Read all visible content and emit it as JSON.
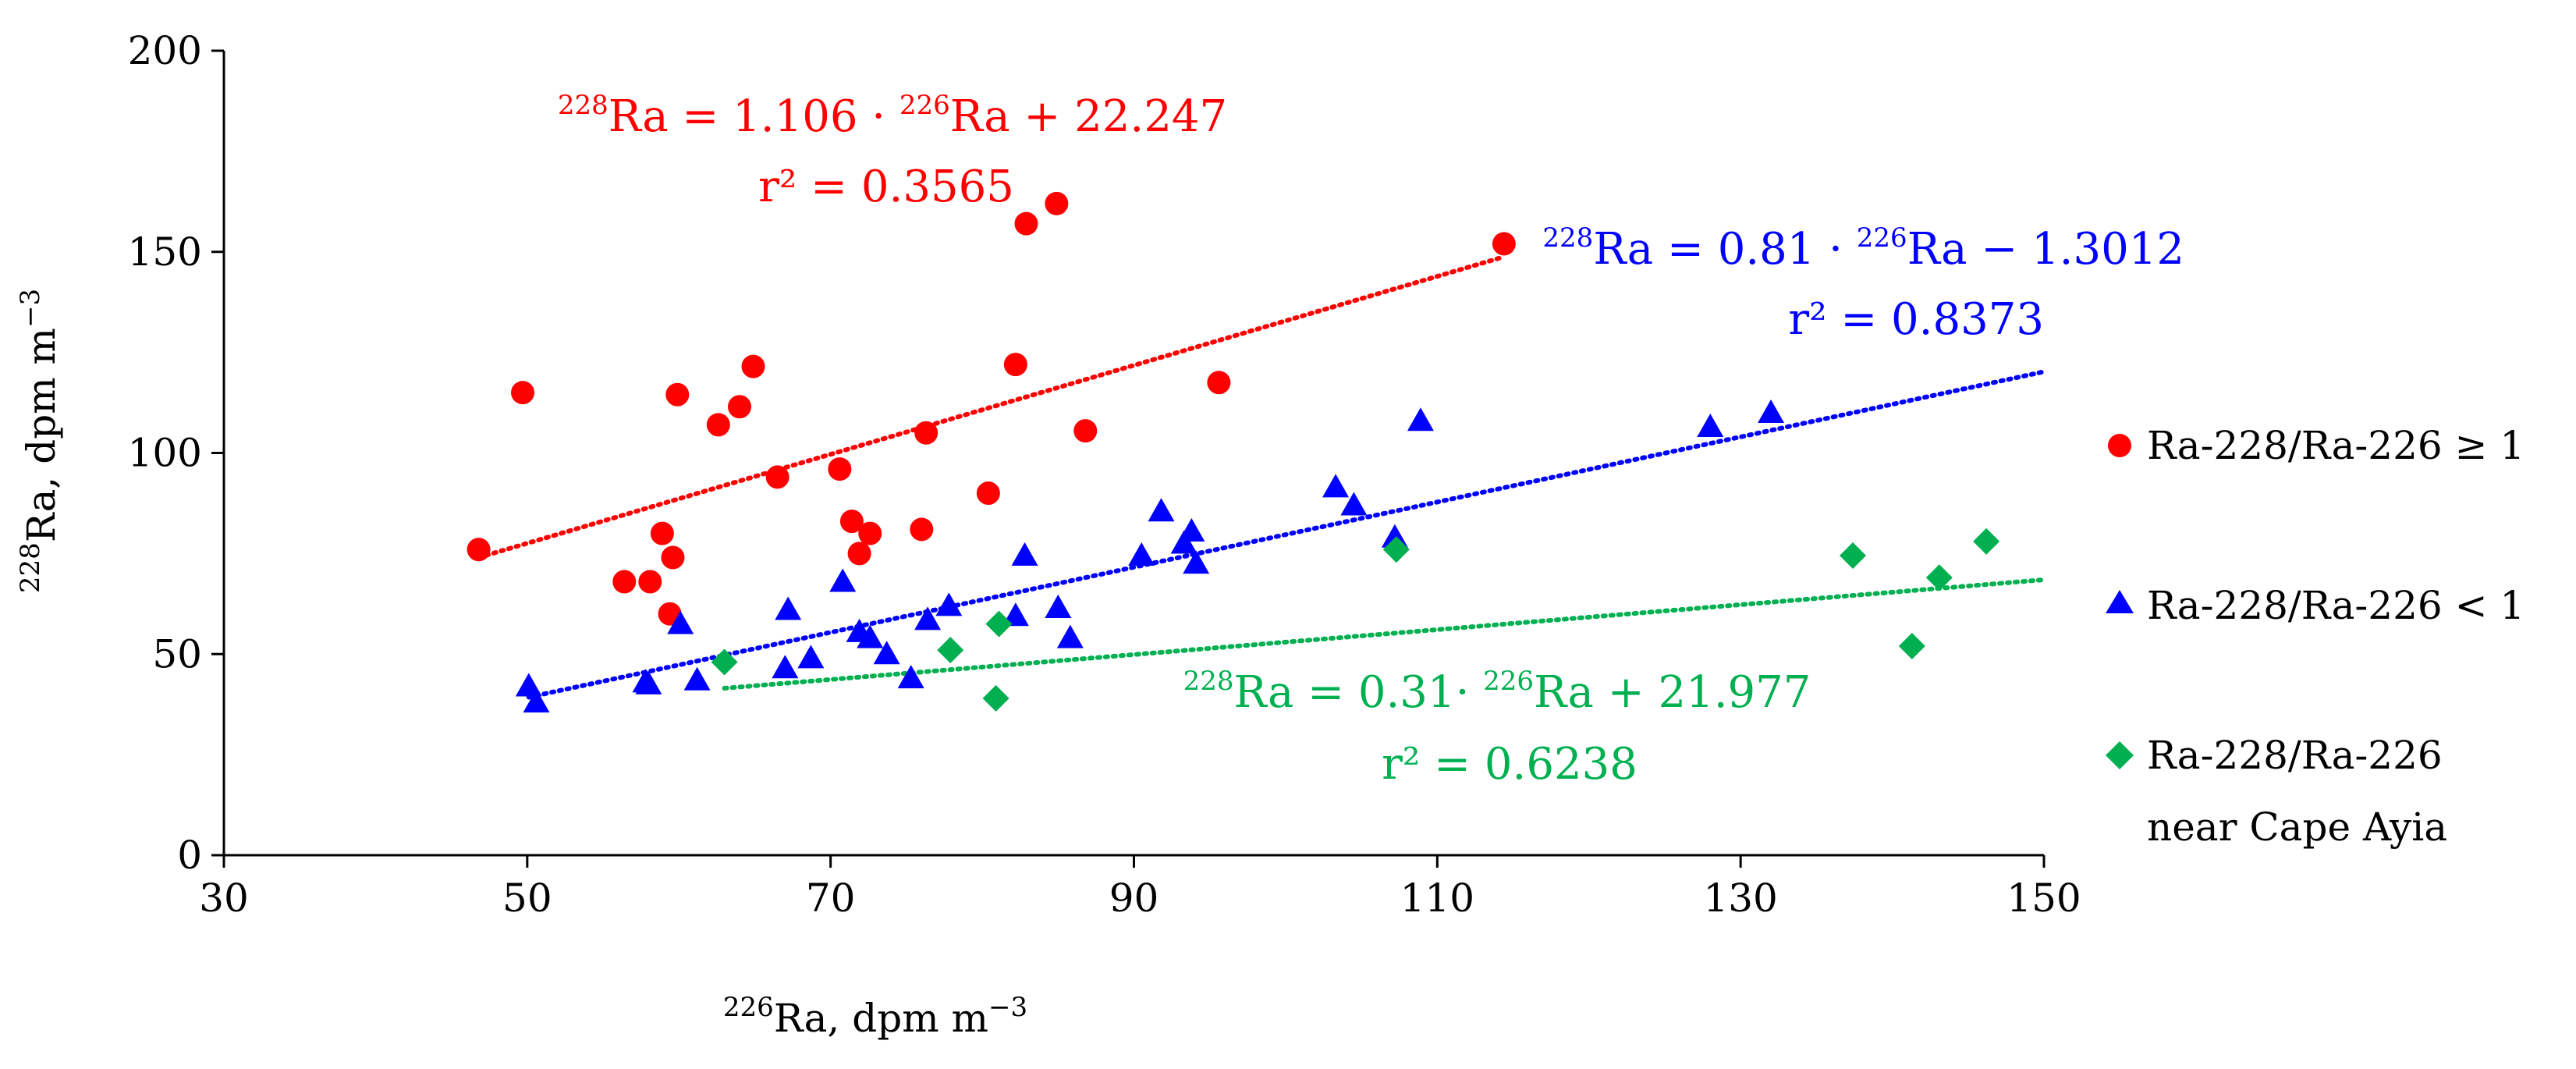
{
  "chart_data": {
    "type": "scatter",
    "title": "",
    "xlabel": {
      "sup": "226",
      "text": "Ra, dpm m",
      "unit_sup": "−3"
    },
    "ylabel": {
      "sup": "228",
      "text": "Ra, dpm m",
      "unit_sup": "−3"
    },
    "xlim": [
      30,
      150
    ],
    "ylim": [
      0,
      200
    ],
    "x_ticks": [
      30,
      50,
      70,
      90,
      110,
      130,
      150
    ],
    "y_ticks": [
      0,
      50,
      100,
      150,
      200
    ],
    "grid": false,
    "legend_position": "right",
    "colors": {
      "red": "#ff0000",
      "blue": "#0000ff",
      "green": "#00b050"
    },
    "series": [
      {
        "name": "Ra-228/Ra-226 ≥ 1",
        "name_line2": "",
        "marker": "circle",
        "color": "#ff0000",
        "points": [
          [
            46.8,
            76
          ],
          [
            49.7,
            115
          ],
          [
            56.4,
            68
          ],
          [
            58.1,
            68
          ],
          [
            58.9,
            80
          ],
          [
            59.4,
            60
          ],
          [
            59.6,
            74
          ],
          [
            59.9,
            114.5
          ],
          [
            62.6,
            107
          ],
          [
            64,
            111.5
          ],
          [
            64.9,
            121.5
          ],
          [
            66.5,
            94
          ],
          [
            70.6,
            96
          ],
          [
            71.4,
            83
          ],
          [
            71.9,
            75
          ],
          [
            72.6,
            80
          ],
          [
            76,
            81
          ],
          [
            76.3,
            105
          ],
          [
            80.4,
            90
          ],
          [
            82.2,
            122
          ],
          [
            82.9,
            157
          ],
          [
            84.9,
            162
          ],
          [
            86.8,
            105.5
          ],
          [
            95.6,
            117.5
          ],
          [
            114.4,
            152
          ]
        ],
        "trendline": {
          "slope": 1.106,
          "intercept": 22.247,
          "x_range": [
            46.8,
            114.4
          ],
          "equation": {
            "lhs_sup": "228",
            "lhs": "Ra = 1.106 · ",
            "rhs_sup": "226",
            "rhs": "Ra + 22.247"
          },
          "r2_text": "r² = 0.3565"
        }
      },
      {
        "name": "Ra-228/Ra-226 < 1",
        "name_line2": "",
        "marker": "triangle",
        "color": "#0000ff",
        "points": [
          [
            50.1,
            42
          ],
          [
            50.6,
            38
          ],
          [
            57.8,
            43
          ],
          [
            58,
            42.5
          ],
          [
            60.1,
            57.5
          ],
          [
            61.2,
            43.5
          ],
          [
            67,
            46.5
          ],
          [
            67.2,
            61
          ],
          [
            68.7,
            49
          ],
          [
            70.8,
            68
          ],
          [
            71.9,
            55.5
          ],
          [
            72.6,
            54
          ],
          [
            73.7,
            50
          ],
          [
            75.3,
            44
          ],
          [
            76.4,
            58.5
          ],
          [
            77.8,
            62
          ],
          [
            82.2,
            59.5
          ],
          [
            82.8,
            74.5
          ],
          [
            85,
            61.5
          ],
          [
            85.8,
            54
          ],
          [
            90.5,
            74.5
          ],
          [
            91.8,
            85.5
          ],
          [
            93.3,
            77.5
          ],
          [
            93.8,
            80.5
          ],
          [
            94.1,
            72.5
          ],
          [
            103.3,
            91.5
          ],
          [
            104.5,
            87
          ],
          [
            107.2,
            79
          ],
          [
            108.9,
            108
          ],
          [
            128,
            106.5
          ],
          [
            132,
            110
          ]
        ],
        "trendline": {
          "slope": 0.81,
          "intercept": -1.3012,
          "x_range": [
            50.1,
            150
          ],
          "equation": {
            "lhs_sup": "228",
            "lhs": "Ra = 0.81 · ",
            "rhs_sup": "226",
            "rhs": "Ra  − 1.3012"
          },
          "r2_text": "r² = 0.8373"
        }
      },
      {
        "name": "Ra-228/Ra-226",
        "name_line2": "near Cape Ayia",
        "marker": "diamond",
        "color": "#00b050",
        "points": [
          [
            63,
            48
          ],
          [
            77.9,
            51
          ],
          [
            80.9,
            39
          ],
          [
            81.1,
            57.5
          ],
          [
            107.3,
            76
          ],
          [
            137.4,
            74.5
          ],
          [
            141.3,
            52
          ],
          [
            143.1,
            69
          ],
          [
            146.2,
            78
          ]
        ],
        "trendline": {
          "slope": 0.31,
          "intercept": 21.977,
          "x_range": [
            63,
            150
          ],
          "equation": {
            "lhs_sup": "228",
            "lhs": "Ra = 0.31· ",
            "rhs_sup": "226",
            "rhs": "Ra  + 21.977"
          },
          "r2_text": "r² = 0.6238"
        }
      }
    ]
  }
}
